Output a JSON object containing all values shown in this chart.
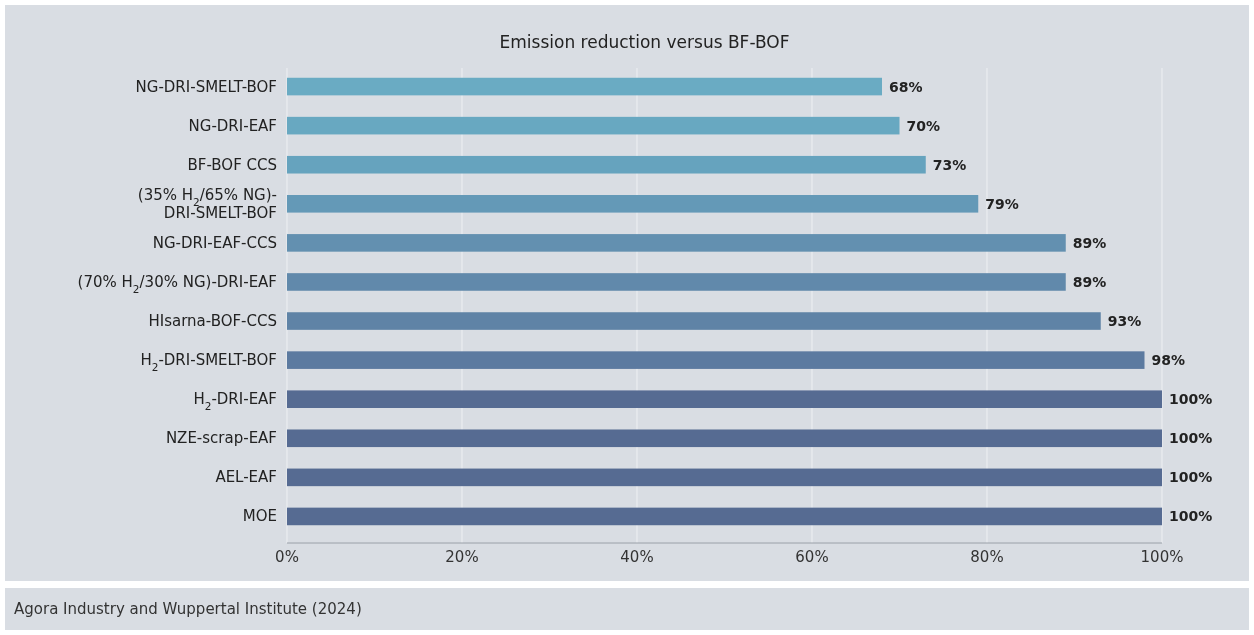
{
  "chart_data": {
    "type": "bar",
    "orientation": "horizontal",
    "title": "Emission reduction versus BF-BOF",
    "categories": [
      "NG-DRI-SMELT-BOF",
      "NG-DRI-EAF",
      "BF-BOF CCS",
      "(35% H$_{2}$/65% NG)-\nDRI-SMELT-BOF",
      "NG-DRI-EAF-CCS",
      "(70% H$_{2}$/30% NG)-DRI-EAF",
      "HIsarna-BOF-CCS",
      "H$_{2}$-DRI-SMELT-BOF",
      "H$_{2}$-DRI-EAF",
      "NZE-scrap-EAF",
      "AEL-EAF",
      "MOE"
    ],
    "values": [
      68,
      70,
      73,
      79,
      89,
      89,
      93,
      98,
      100,
      100,
      100,
      100
    ],
    "colors": [
      "#6aabc3",
      "#68a8c1",
      "#66a3be",
      "#6499b7",
      "#6390b0",
      "#6189ab",
      "#5f83a6",
      "#5c7aa0",
      "#566b92",
      "#566b92",
      "#566b92",
      "#566b92"
    ],
    "value_labels": [
      "68%",
      "70%",
      "73%",
      "79%",
      "89%",
      "89%",
      "93%",
      "98%",
      "100%",
      "100%",
      "100%",
      "100%"
    ],
    "xlim": [
      0,
      100
    ],
    "xticks": [
      {
        "value": 0,
        "label": "0%"
      },
      {
        "value": 20,
        "label": "20%"
      },
      {
        "value": 40,
        "label": "40%"
      },
      {
        "value": 60,
        "label": "60%"
      },
      {
        "value": 80,
        "label": "80%"
      },
      {
        "value": 100,
        "label": "100%"
      }
    ],
    "grid": "x",
    "annotations": [
      "Agora Industry and Wuppertal Institute (2024)"
    ]
  }
}
